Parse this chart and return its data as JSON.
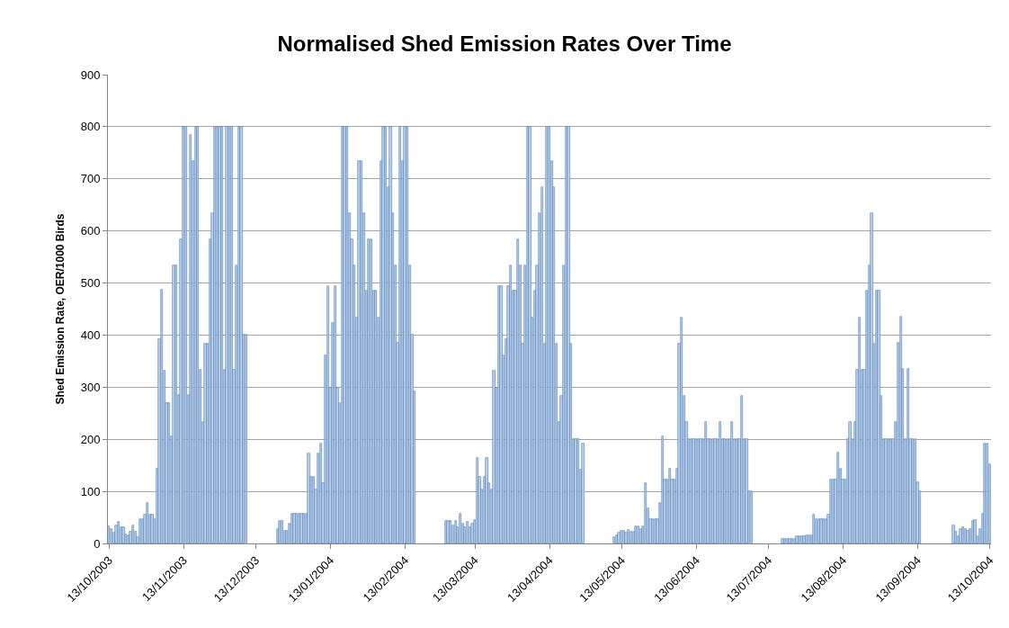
{
  "chart_data": {
    "type": "bar",
    "title": "Normalised Shed Emission Rates Over Time",
    "ylabel": "Shed Emission Rate, OER/1000 Birds",
    "x": [
      "2003-10-13",
      "2003-10-14",
      "2003-10-15",
      "2003-10-16",
      "2003-10-17",
      "2003-10-18",
      "2003-10-19",
      "2003-10-20",
      "2003-10-21",
      "2003-10-22",
      "2003-10-23",
      "2003-10-24",
      "2003-10-25",
      "2003-10-26",
      "2003-10-27",
      "2003-10-28",
      "2003-10-29",
      "2003-10-30",
      "2003-10-31",
      "2003-11-01",
      "2003-11-02",
      "2003-11-03",
      "2003-11-04",
      "2003-11-05",
      "2003-11-06",
      "2003-11-07",
      "2003-11-08",
      "2003-11-09",
      "2003-11-10",
      "2003-11-11",
      "2003-11-12",
      "2003-11-13",
      "2003-11-14",
      "2003-11-15",
      "2003-11-16",
      "2003-11-17",
      "2003-11-18",
      "2003-11-19",
      "2003-11-20",
      "2003-11-21",
      "2003-11-22",
      "2003-11-23",
      "2003-11-24",
      "2003-11-25",
      "2003-11-26",
      "2003-11-27",
      "2003-11-28",
      "2003-11-29",
      "2003-11-30",
      "2003-12-01",
      "2003-12-02",
      "2003-12-03",
      "2003-12-04",
      "2003-12-05",
      "2003-12-06",
      "2003-12-07",
      "2003-12-08",
      "2003-12-09",
      "2003-12-22",
      "2003-12-23",
      "2003-12-24",
      "2003-12-25",
      "2003-12-26",
      "2003-12-27",
      "2003-12-28",
      "2003-12-29",
      "2003-12-30",
      "2003-12-31",
      "2004-01-01",
      "2004-01-02",
      "2004-01-03",
      "2004-01-04",
      "2004-01-05",
      "2004-01-06",
      "2004-01-07",
      "2004-01-08",
      "2004-01-09",
      "2004-01-10",
      "2004-01-11",
      "2004-01-12",
      "2004-01-13",
      "2004-01-14",
      "2004-01-15",
      "2004-01-16",
      "2004-01-17",
      "2004-01-18",
      "2004-01-19",
      "2004-01-20",
      "2004-01-21",
      "2004-01-22",
      "2004-01-23",
      "2004-01-24",
      "2004-01-25",
      "2004-01-26",
      "2004-01-27",
      "2004-01-28",
      "2004-01-29",
      "2004-01-30",
      "2004-01-31",
      "2004-02-01",
      "2004-02-02",
      "2004-02-03",
      "2004-02-04",
      "2004-02-05",
      "2004-02-06",
      "2004-02-07",
      "2004-02-08",
      "2004-02-09",
      "2004-02-10",
      "2004-02-11",
      "2004-02-12",
      "2004-02-13",
      "2004-02-14",
      "2004-02-15",
      "2004-02-16",
      "2004-02-17",
      "2004-03-01",
      "2004-03-02",
      "2004-03-03",
      "2004-03-04",
      "2004-03-05",
      "2004-03-06",
      "2004-03-07",
      "2004-03-08",
      "2004-03-09",
      "2004-03-10",
      "2004-03-11",
      "2004-03-12",
      "2004-03-13",
      "2004-03-14",
      "2004-03-15",
      "2004-03-16",
      "2004-03-17",
      "2004-03-18",
      "2004-03-19",
      "2004-03-20",
      "2004-03-21",
      "2004-03-22",
      "2004-03-23",
      "2004-03-24",
      "2004-03-25",
      "2004-03-26",
      "2004-03-27",
      "2004-03-28",
      "2004-03-29",
      "2004-03-30",
      "2004-03-31",
      "2004-04-01",
      "2004-04-02",
      "2004-04-03",
      "2004-04-04",
      "2004-04-05",
      "2004-04-06",
      "2004-04-07",
      "2004-04-08",
      "2004-04-09",
      "2004-04-10",
      "2004-04-11",
      "2004-04-12",
      "2004-04-13",
      "2004-04-14",
      "2004-04-15",
      "2004-04-16",
      "2004-04-17",
      "2004-04-18",
      "2004-04-19",
      "2004-04-20",
      "2004-04-21",
      "2004-04-22",
      "2004-04-23",
      "2004-04-24",
      "2004-04-25",
      "2004-04-26",
      "2004-04-27",
      "2004-05-10",
      "2004-05-11",
      "2004-05-12",
      "2004-05-13",
      "2004-05-14",
      "2004-05-15",
      "2004-05-16",
      "2004-05-17",
      "2004-05-18",
      "2004-05-19",
      "2004-05-20",
      "2004-05-21",
      "2004-05-22",
      "2004-05-23",
      "2004-05-24",
      "2004-05-25",
      "2004-05-26",
      "2004-05-27",
      "2004-05-28",
      "2004-05-29",
      "2004-05-30",
      "2004-05-31",
      "2004-06-01",
      "2004-06-02",
      "2004-06-03",
      "2004-06-04",
      "2004-06-05",
      "2004-06-06",
      "2004-06-07",
      "2004-06-08",
      "2004-06-09",
      "2004-06-10",
      "2004-06-11",
      "2004-06-12",
      "2004-06-13",
      "2004-06-14",
      "2004-06-15",
      "2004-06-16",
      "2004-06-17",
      "2004-06-18",
      "2004-06-19",
      "2004-06-20",
      "2004-06-21",
      "2004-06-22",
      "2004-06-23",
      "2004-06-24",
      "2004-06-25",
      "2004-06-26",
      "2004-06-27",
      "2004-06-28",
      "2004-06-29",
      "2004-06-30",
      "2004-07-01",
      "2004-07-02",
      "2004-07-03",
      "2004-07-04",
      "2004-07-05",
      "2004-07-06",
      "2004-07-19",
      "2004-07-20",
      "2004-07-21",
      "2004-07-22",
      "2004-07-23",
      "2004-07-24",
      "2004-07-25",
      "2004-07-26",
      "2004-07-27",
      "2004-07-28",
      "2004-07-29",
      "2004-07-30",
      "2004-07-31",
      "2004-08-01",
      "2004-08-02",
      "2004-08-03",
      "2004-08-04",
      "2004-08-05",
      "2004-08-06",
      "2004-08-07",
      "2004-08-08",
      "2004-08-09",
      "2004-08-10",
      "2004-08-11",
      "2004-08-12",
      "2004-08-13",
      "2004-08-14",
      "2004-08-15",
      "2004-08-16",
      "2004-08-17",
      "2004-08-18",
      "2004-08-19",
      "2004-08-20",
      "2004-08-21",
      "2004-08-22",
      "2004-08-23",
      "2004-08-24",
      "2004-08-25",
      "2004-08-26",
      "2004-08-27",
      "2004-08-28",
      "2004-08-29",
      "2004-08-30",
      "2004-08-31",
      "2004-09-01",
      "2004-09-02",
      "2004-09-03",
      "2004-09-04",
      "2004-09-05",
      "2004-09-06",
      "2004-09-07",
      "2004-09-08",
      "2004-09-09",
      "2004-09-10",
      "2004-09-11",
      "2004-09-12",
      "2004-09-13",
      "2004-09-14",
      "2004-09-28",
      "2004-09-29",
      "2004-09-30",
      "2004-10-01",
      "2004-10-02",
      "2004-10-03",
      "2004-10-04",
      "2004-10-05",
      "2004-10-06",
      "2004-10-07",
      "2004-10-08",
      "2004-10-09",
      "2004-10-10",
      "2004-10-11",
      "2004-10-12",
      "2004-10-13"
    ],
    "values": [
      32,
      28,
      20,
      34,
      42,
      31,
      31,
      18,
      16,
      23,
      34,
      23,
      12,
      46,
      46,
      55,
      78,
      55,
      55,
      46,
      143,
      392,
      487,
      331,
      269,
      269,
      206,
      534,
      534,
      285,
      584,
      800,
      800,
      285,
      785,
      735,
      800,
      800,
      334,
      233,
      383,
      383,
      584,
      634,
      800,
      800,
      800,
      800,
      334,
      800,
      800,
      800,
      334,
      534,
      800,
      800,
      400,
      400,
      28,
      43,
      43,
      24,
      24,
      38,
      57,
      57,
      57,
      57,
      57,
      57,
      57,
      173,
      127,
      127,
      103,
      173,
      191,
      115,
      361,
      494,
      298,
      423,
      494,
      298,
      269,
      800,
      800,
      800,
      634,
      584,
      534,
      434,
      735,
      735,
      634,
      485,
      584,
      584,
      485,
      485,
      434,
      735,
      800,
      800,
      684,
      800,
      634,
      534,
      385,
      800,
      735,
      800,
      800,
      534,
      400,
      292,
      43,
      43,
      43,
      34,
      43,
      31,
      57,
      38,
      31,
      42,
      31,
      38,
      45,
      164,
      127,
      103,
      127,
      164,
      115,
      103,
      331,
      298,
      494,
      494,
      361,
      392,
      494,
      534,
      485,
      485,
      584,
      534,
      383,
      534,
      800,
      800,
      434,
      485,
      534,
      634,
      684,
      383,
      800,
      800,
      735,
      684,
      383,
      233,
      283,
      534,
      800,
      800,
      383,
      200,
      200,
      200,
      141,
      191,
      12,
      16,
      20,
      25,
      25,
      20,
      26,
      23,
      23,
      32,
      32,
      27,
      32,
      115,
      67,
      47,
      47,
      47,
      47,
      78,
      206,
      123,
      123,
      143,
      123,
      123,
      143,
      383,
      434,
      283,
      233,
      200,
      200,
      200,
      200,
      200,
      200,
      200,
      233,
      200,
      200,
      200,
      200,
      200,
      233,
      200,
      200,
      200,
      200,
      233,
      200,
      200,
      200,
      283,
      200,
      200,
      100,
      100,
      9,
      9,
      9,
      9,
      9,
      9,
      13,
      13,
      13,
      13,
      16,
      16,
      16,
      55,
      46,
      46,
      46,
      46,
      46,
      55,
      123,
      123,
      123,
      175,
      143,
      123,
      123,
      200,
      233,
      200,
      233,
      334,
      434,
      334,
      334,
      485,
      534,
      634,
      383,
      485,
      485,
      283,
      200,
      200,
      200,
      200,
      200,
      233,
      385,
      435,
      335,
      200,
      335,
      200,
      200,
      200,
      117,
      100,
      35,
      23,
      14,
      28,
      31,
      28,
      24,
      27,
      43,
      45,
      14,
      27,
      57,
      192,
      192,
      152
    ],
    "color": "#b9cde5",
    "xlim": [
      "2003-10-12T12:00",
      "2004-10-13T12:00"
    ],
    "xticks": [
      {
        "value": "2003-10-13",
        "label": "13/10/2003"
      },
      {
        "value": "2003-11-13",
        "label": "13/11/2003"
      },
      {
        "value": "2003-12-13",
        "label": "13/12/2003"
      },
      {
        "value": "2004-01-13",
        "label": "13/01/2004"
      },
      {
        "value": "2004-02-13",
        "label": "13/02/2004"
      },
      {
        "value": "2004-03-13",
        "label": "13/03/2004"
      },
      {
        "value": "2004-04-13",
        "label": "13/04/2004"
      },
      {
        "value": "2004-05-13",
        "label": "13/05/2004"
      },
      {
        "value": "2004-06-13",
        "label": "13/06/2004"
      },
      {
        "value": "2004-07-13",
        "label": "13/07/2004"
      },
      {
        "value": "2004-08-13",
        "label": "13/08/2004"
      },
      {
        "value": "2004-09-13",
        "label": "13/09/2004"
      },
      {
        "value": "2004-10-13",
        "label": "13/10/2004"
      }
    ],
    "ylim": [
      0,
      900
    ],
    "yticks": [
      0,
      100,
      200,
      300,
      400,
      500,
      600,
      700,
      800,
      900
    ],
    "grid": "y"
  }
}
